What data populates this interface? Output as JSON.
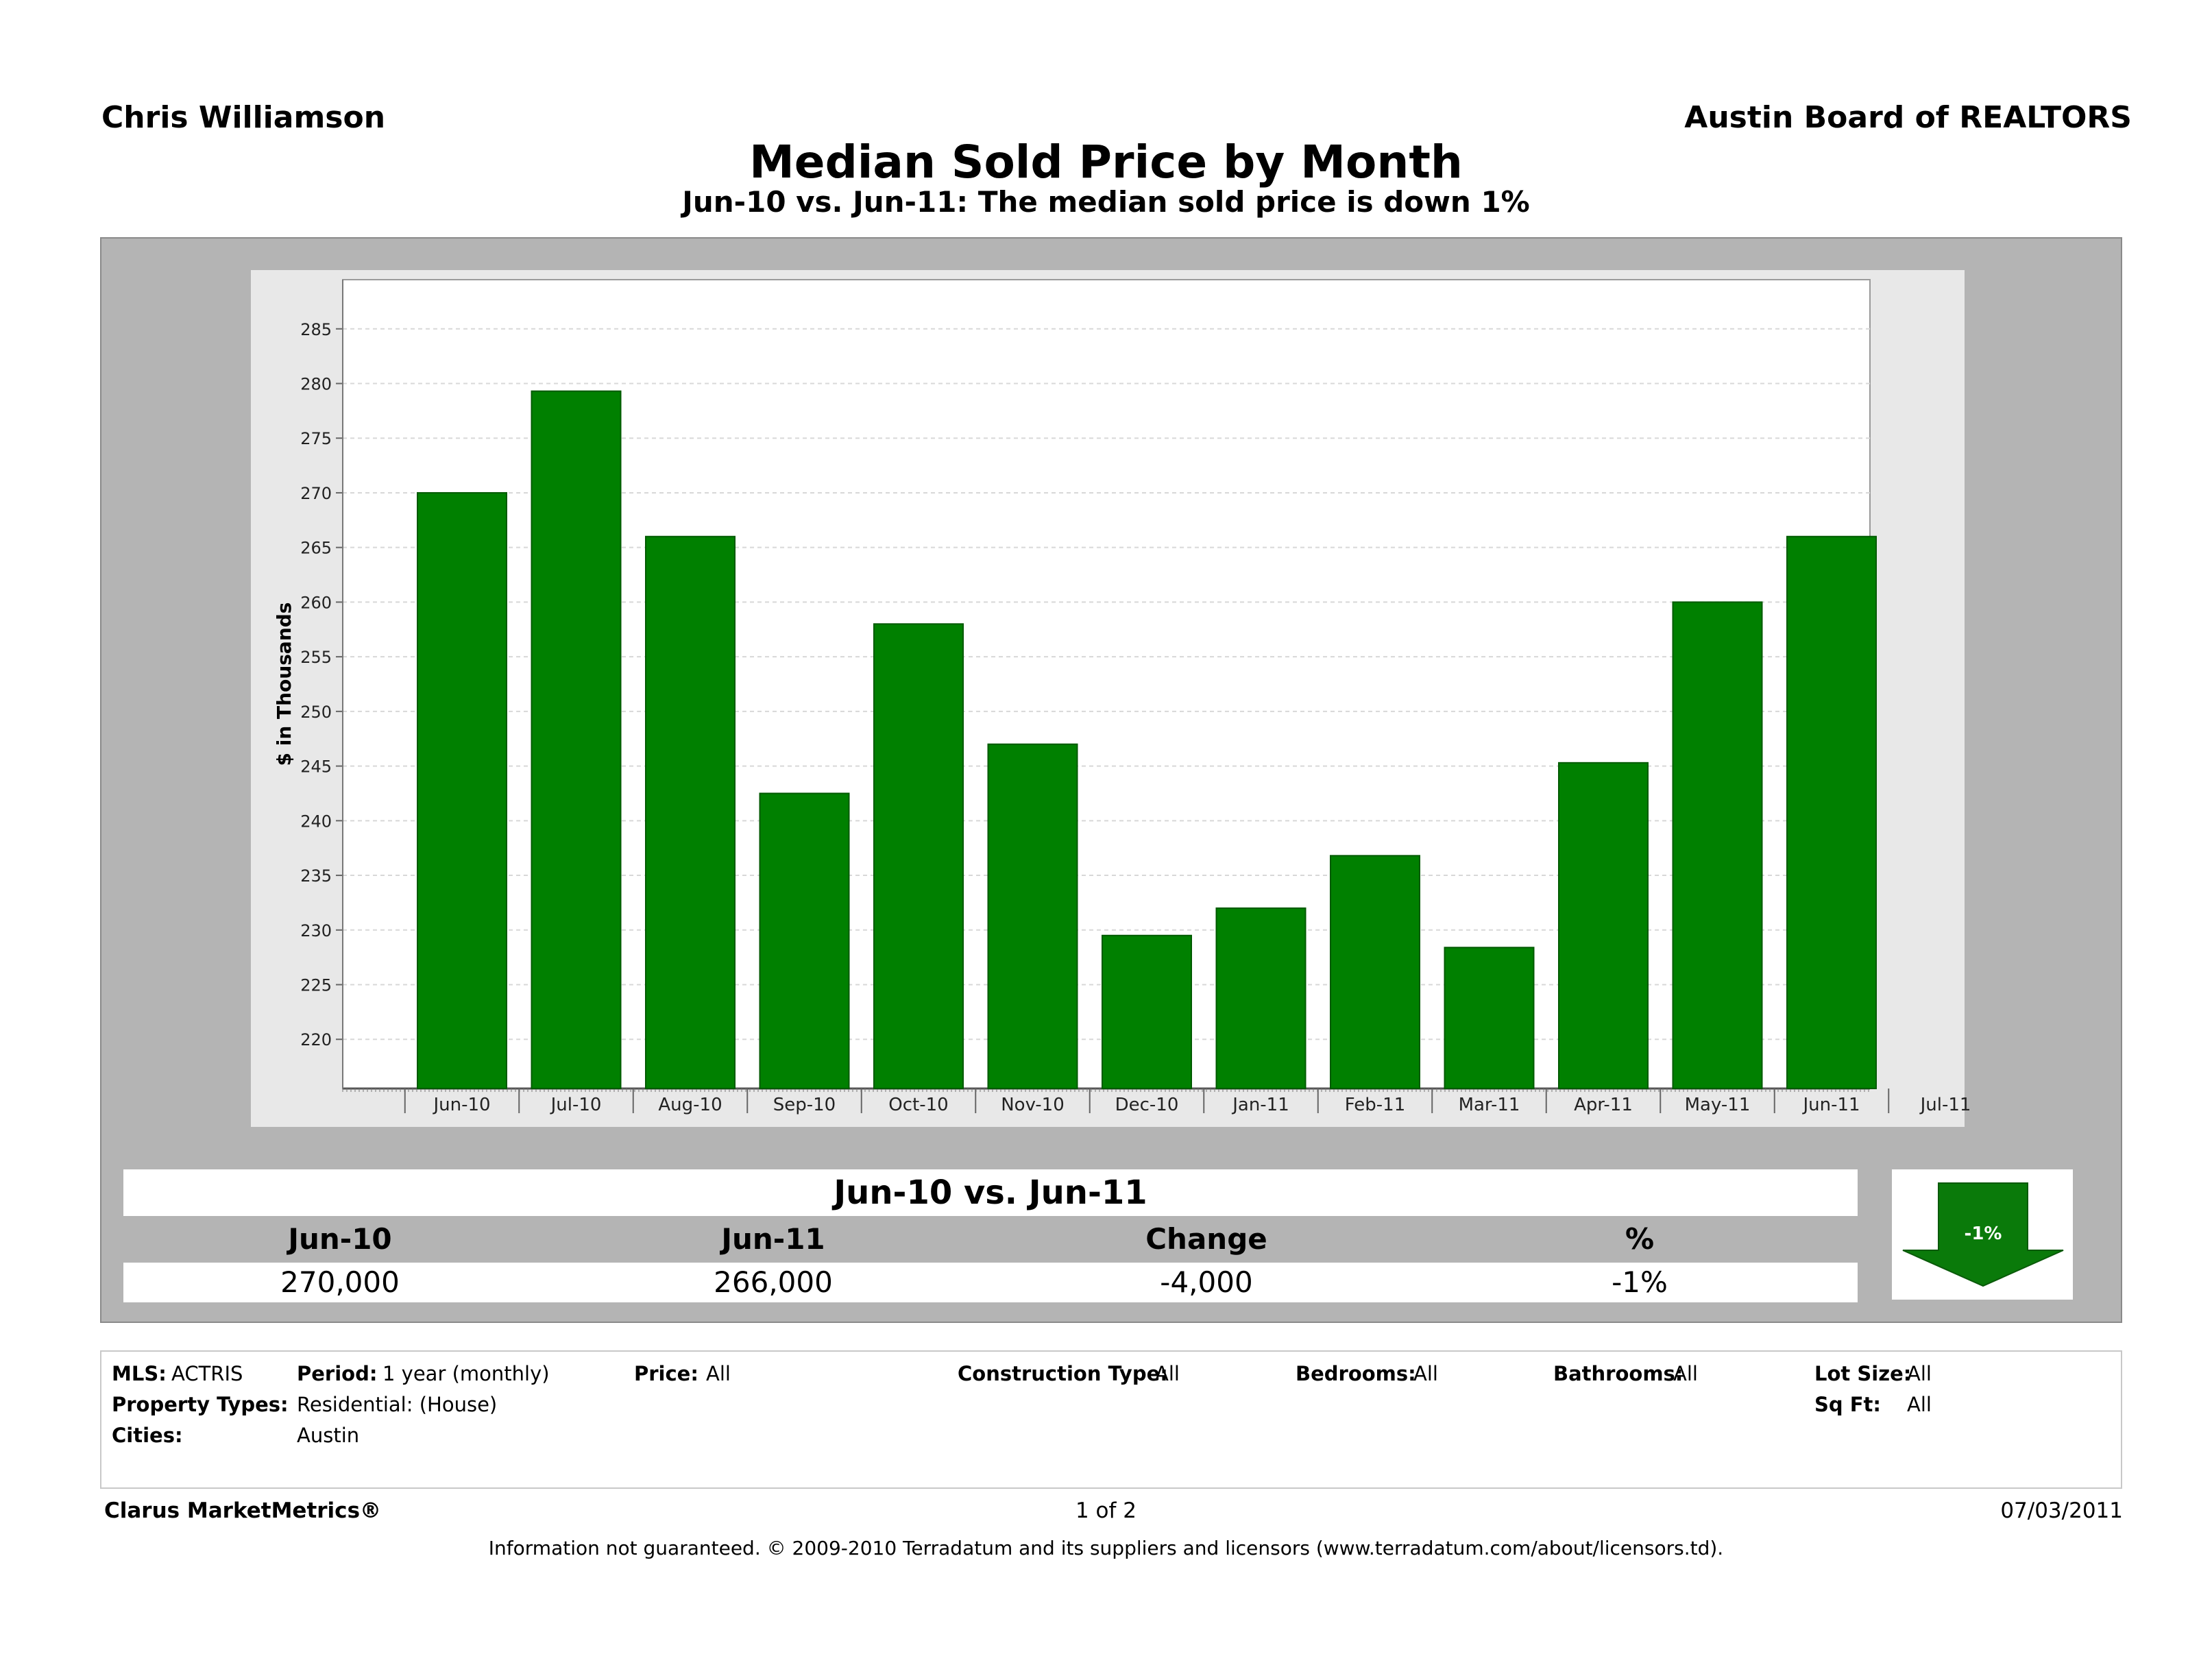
{
  "header": {
    "agent": "Chris Williamson",
    "board": "Austin Board of REALTORS",
    "title": "Median Sold Price by Month",
    "subtitle": "Jun-10 vs. Jun-11:  The median sold price is down 1%"
  },
  "chart_data": {
    "type": "bar",
    "ylabel": "$ in Thousands",
    "xlabel": "",
    "categories": [
      "Jun-10",
      "Jul-10",
      "Aug-10",
      "Sep-10",
      "Oct-10",
      "Nov-10",
      "Dec-10",
      "Jan-11",
      "Feb-11",
      "Mar-11",
      "Apr-11",
      "May-11",
      "Jun-11",
      "Jul-11"
    ],
    "values": [
      270,
      279.3,
      266,
      242.5,
      258,
      247,
      229.5,
      232,
      236.8,
      228.4,
      245.3,
      260,
      266,
      null
    ],
    "ylim": [
      215.5,
      289.5
    ],
    "yticks": [
      220,
      225,
      230,
      235,
      240,
      245,
      250,
      255,
      260,
      265,
      270,
      275,
      280,
      285
    ],
    "grid": true,
    "bar_color": "#008000"
  },
  "summary": {
    "heading": "Jun-10 vs. Jun-11",
    "columns": [
      "Jun-10",
      "Jun-11",
      "Change",
      "%"
    ],
    "values": [
      "270,000",
      "266,000",
      "-4,000",
      "-1%"
    ],
    "badge": "-1%",
    "badge_color": "#0a7a0a"
  },
  "filters": {
    "mls_label": "MLS:",
    "mls_value": "ACTRIS",
    "period_label": "Period:",
    "period_value": "1 year (monthly)",
    "price_label": "Price:",
    "price_value": "All",
    "construction_label": "Construction Type:",
    "construction_value": "All",
    "bedrooms_label": "Bedrooms:",
    "bedrooms_value": "All",
    "bathrooms_label": "Bathrooms:",
    "bathrooms_value": "All",
    "lotsize_label": "Lot Size:",
    "lotsize_value": "All",
    "proptypes_label": "Property Types:",
    "proptypes_value": "Residential: (House)",
    "sqft_label": "Sq Ft:",
    "sqft_value": "All",
    "cities_label": "Cities:",
    "cities_value": "Austin"
  },
  "footer": {
    "brand": "Clarus MarketMetrics®",
    "page": "1 of 2",
    "date": "07/03/2011",
    "disclaimer": "Information not guaranteed.  © 2009-2010 Terradatum and its suppliers and licensors (www.terradatum.com/about/licensors.td)."
  }
}
